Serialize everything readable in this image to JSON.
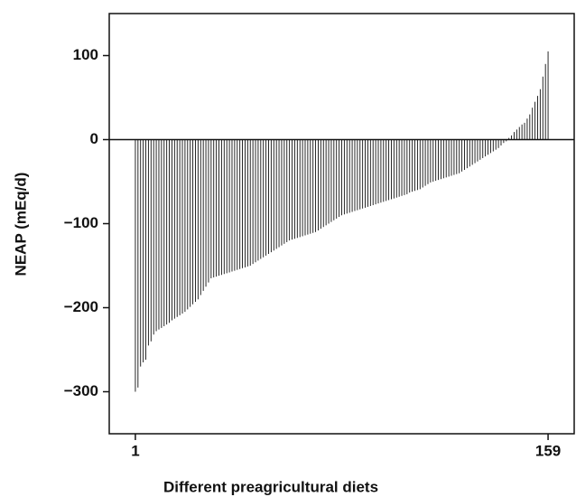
{
  "chart_data": {
    "type": "bar",
    "y_label": "NEAP (mEq/d)",
    "x_label": "Different preagricultural diets",
    "color": "#111111",
    "xlim": [
      -9,
      169
    ],
    "xticks": [
      1,
      159
    ],
    "ylim": [
      -350,
      150
    ],
    "yticks": [
      {
        "value": 100,
        "label": "100"
      },
      {
        "value": 0,
        "label": "0"
      },
      {
        "value": -100,
        "label": "−100"
      },
      {
        "value": -200,
        "label": "−200"
      },
      {
        "value": -300,
        "label": "−300"
      }
    ],
    "x": [
      1,
      2,
      3,
      4,
      5,
      6,
      7,
      8,
      9,
      10,
      11,
      12,
      13,
      14,
      15,
      16,
      17,
      18,
      19,
      20,
      21,
      22,
      23,
      24,
      25,
      26,
      27,
      28,
      29,
      30,
      31,
      32,
      33,
      34,
      35,
      36,
      37,
      38,
      39,
      40,
      41,
      42,
      43,
      44,
      45,
      46,
      47,
      48,
      49,
      50,
      51,
      52,
      53,
      54,
      55,
      56,
      57,
      58,
      59,
      60,
      61,
      62,
      63,
      64,
      65,
      66,
      67,
      68,
      69,
      70,
      71,
      72,
      73,
      74,
      75,
      76,
      77,
      78,
      79,
      80,
      81,
      82,
      83,
      84,
      85,
      86,
      87,
      88,
      89,
      90,
      91,
      92,
      93,
      94,
      95,
      96,
      97,
      98,
      99,
      100,
      101,
      102,
      103,
      104,
      105,
      106,
      107,
      108,
      109,
      110,
      111,
      112,
      113,
      114,
      115,
      116,
      117,
      118,
      119,
      120,
      121,
      122,
      123,
      124,
      125,
      126,
      127,
      128,
      129,
      130,
      131,
      132,
      133,
      134,
      135,
      136,
      137,
      138,
      139,
      140,
      141,
      142,
      143,
      144,
      145,
      146,
      147,
      148,
      149,
      150,
      151,
      152,
      153,
      154,
      155,
      156,
      157,
      158,
      159
    ],
    "values": [
      -300,
      -295,
      -270,
      -265,
      -262,
      -245,
      -240,
      -232,
      -228,
      -226,
      -224,
      -222,
      -220,
      -218,
      -215,
      -213,
      -211,
      -209,
      -207,
      -205,
      -202,
      -199,
      -196,
      -193,
      -190,
      -185,
      -180,
      -175,
      -170,
      -165,
      -164,
      -163,
      -162,
      -161,
      -160,
      -159,
      -158,
      -157,
      -156,
      -155,
      -154,
      -153,
      -152,
      -151,
      -150,
      -148,
      -146,
      -144,
      -142,
      -140,
      -138,
      -136,
      -134,
      -132,
      -130,
      -128,
      -126,
      -124,
      -122,
      -120,
      -119,
      -118,
      -117,
      -116,
      -115,
      -114,
      -113,
      -112,
      -111,
      -110,
      -108,
      -106,
      -104,
      -102,
      -100,
      -98,
      -96,
      -94,
      -92,
      -90,
      -89,
      -88,
      -87,
      -86,
      -85,
      -84,
      -83,
      -82,
      -81,
      -80,
      -79,
      -78,
      -77,
      -76,
      -75,
      -74,
      -73,
      -72,
      -71,
      -70,
      -69,
      -68,
      -67,
      -66,
      -65,
      -63,
      -62,
      -61,
      -60,
      -59,
      -57,
      -55,
      -53,
      -51,
      -50,
      -49,
      -48,
      -47,
      -46,
      -45,
      -44,
      -43,
      -42,
      -41,
      -40,
      -38,
      -36,
      -34,
      -32,
      -30,
      -28,
      -26,
      -24,
      -22,
      -20,
      -18,
      -16,
      -14,
      -12,
      -10,
      -7,
      -4,
      -2,
      2,
      5,
      9,
      12,
      15,
      18,
      20,
      25,
      30,
      38,
      45,
      52,
      60,
      75,
      90,
      105
    ]
  }
}
